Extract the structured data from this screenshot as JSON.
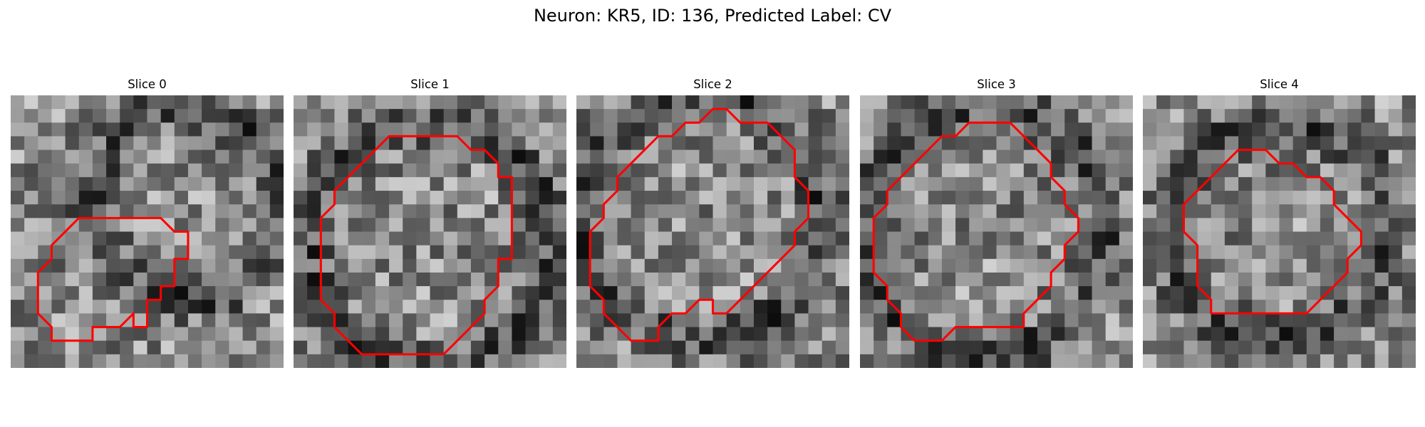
{
  "figure": {
    "title": "Neuron: KR5, ID: 136, Predicted Label: CV"
  },
  "colors": {
    "contour": "#ff0000",
    "colormap": "gray"
  },
  "panels": [
    {
      "title": "Slice 0",
      "contour": [
        [
          8,
          9
        ],
        [
          11,
          9
        ],
        [
          12,
          10
        ],
        [
          13,
          10
        ],
        [
          13,
          12
        ],
        [
          12,
          12
        ],
        [
          12,
          14
        ],
        [
          11,
          14
        ],
        [
          11,
          15
        ],
        [
          10,
          15
        ],
        [
          10,
          17
        ],
        [
          9,
          17
        ],
        [
          9,
          16
        ],
        [
          8,
          17
        ],
        [
          7,
          17
        ],
        [
          6,
          17
        ],
        [
          6,
          18
        ],
        [
          4,
          18
        ],
        [
          3,
          18
        ],
        [
          3,
          17
        ],
        [
          2,
          16
        ],
        [
          2,
          13
        ],
        [
          3,
          12
        ],
        [
          3,
          11
        ],
        [
          4,
          10
        ],
        [
          5,
          9
        ],
        [
          6,
          9
        ]
      ]
    },
    {
      "title": "Slice 1",
      "contour": [
        [
          9,
          3
        ],
        [
          12,
          3
        ],
        [
          13,
          4
        ],
        [
          14,
          4
        ],
        [
          15,
          5
        ],
        [
          15,
          6
        ],
        [
          16,
          6
        ],
        [
          16,
          7
        ],
        [
          16,
          8
        ],
        [
          16,
          9
        ],
        [
          16,
          10
        ],
        [
          16,
          11
        ],
        [
          16,
          12
        ],
        [
          15,
          12
        ],
        [
          15,
          14
        ],
        [
          14,
          15
        ],
        [
          14,
          16
        ],
        [
          13,
          17
        ],
        [
          12,
          18
        ],
        [
          11,
          19
        ],
        [
          9,
          19
        ],
        [
          7,
          19
        ],
        [
          6,
          19
        ],
        [
          5,
          19
        ],
        [
          4,
          18
        ],
        [
          3,
          17
        ],
        [
          3,
          16
        ],
        [
          2,
          15
        ],
        [
          2,
          13
        ],
        [
          2,
          11
        ],
        [
          2,
          9
        ],
        [
          3,
          8
        ],
        [
          3,
          7
        ],
        [
          4,
          6
        ],
        [
          5,
          5
        ],
        [
          6,
          4
        ],
        [
          7,
          3
        ]
      ]
    },
    {
      "title": "Slice 2",
      "contour": [
        [
          11,
          1
        ],
        [
          12,
          2
        ],
        [
          14,
          2
        ],
        [
          15,
          3
        ],
        [
          16,
          4
        ],
        [
          16,
          5
        ],
        [
          16,
          6
        ],
        [
          17,
          7
        ],
        [
          17,
          8
        ],
        [
          17,
          9
        ],
        [
          16,
          10
        ],
        [
          16,
          11
        ],
        [
          15,
          12
        ],
        [
          14,
          13
        ],
        [
          13,
          14
        ],
        [
          12,
          15
        ],
        [
          11,
          16
        ],
        [
          10,
          16
        ],
        [
          10,
          15
        ],
        [
          9,
          15
        ],
        [
          8,
          16
        ],
        [
          7,
          16
        ],
        [
          6,
          17
        ],
        [
          6,
          18
        ],
        [
          5,
          18
        ],
        [
          4,
          18
        ],
        [
          3,
          17
        ],
        [
          2,
          16
        ],
        [
          2,
          15
        ],
        [
          1,
          14
        ],
        [
          1,
          13
        ],
        [
          1,
          12
        ],
        [
          1,
          11
        ],
        [
          1,
          10
        ],
        [
          2,
          9
        ],
        [
          2,
          8
        ],
        [
          3,
          7
        ],
        [
          3,
          6
        ],
        [
          4,
          5
        ],
        [
          5,
          4
        ],
        [
          6,
          3
        ],
        [
          7,
          3
        ],
        [
          8,
          2
        ],
        [
          9,
          2
        ],
        [
          10,
          1
        ]
      ]
    },
    {
      "title": "Slice 3",
      "contour": [
        [
          8,
          2
        ],
        [
          10,
          2
        ],
        [
          11,
          2
        ],
        [
          12,
          3
        ],
        [
          13,
          4
        ],
        [
          14,
          5
        ],
        [
          14,
          6
        ],
        [
          15,
          7
        ],
        [
          15,
          8
        ],
        [
          16,
          9
        ],
        [
          16,
          10
        ],
        [
          15,
          11
        ],
        [
          15,
          12
        ],
        [
          14,
          13
        ],
        [
          14,
          14
        ],
        [
          13,
          15
        ],
        [
          12,
          16
        ],
        [
          12,
          17
        ],
        [
          11,
          17
        ],
        [
          10,
          17
        ],
        [
          9,
          17
        ],
        [
          8,
          17
        ],
        [
          7,
          17
        ],
        [
          6,
          18
        ],
        [
          5,
          18
        ],
        [
          4,
          18
        ],
        [
          3,
          17
        ],
        [
          3,
          16
        ],
        [
          2,
          15
        ],
        [
          2,
          14
        ],
        [
          1,
          13
        ],
        [
          1,
          12
        ],
        [
          1,
          10
        ],
        [
          1,
          9
        ],
        [
          2,
          8
        ],
        [
          2,
          7
        ],
        [
          3,
          6
        ],
        [
          4,
          5
        ],
        [
          5,
          4
        ],
        [
          6,
          3
        ],
        [
          7,
          3
        ]
      ]
    },
    {
      "title": "Slice 4",
      "contour": [
        [
          7,
          4
        ],
        [
          9,
          4
        ],
        [
          10,
          5
        ],
        [
          11,
          5
        ],
        [
          12,
          6
        ],
        [
          13,
          6
        ],
        [
          14,
          7
        ],
        [
          14,
          8
        ],
        [
          15,
          9
        ],
        [
          16,
          10
        ],
        [
          16,
          11
        ],
        [
          15,
          12
        ],
        [
          15,
          13
        ],
        [
          14,
          14
        ],
        [
          13,
          15
        ],
        [
          12,
          16
        ],
        [
          11,
          16
        ],
        [
          10,
          16
        ],
        [
          9,
          16
        ],
        [
          8,
          16
        ],
        [
          7,
          16
        ],
        [
          6,
          16
        ],
        [
          5,
          16
        ],
        [
          5,
          15
        ],
        [
          4,
          14
        ],
        [
          4,
          13
        ],
        [
          4,
          11
        ],
        [
          3,
          10
        ],
        [
          3,
          9
        ],
        [
          3,
          8
        ],
        [
          4,
          7
        ],
        [
          5,
          6
        ],
        [
          6,
          5
        ]
      ]
    }
  ]
}
